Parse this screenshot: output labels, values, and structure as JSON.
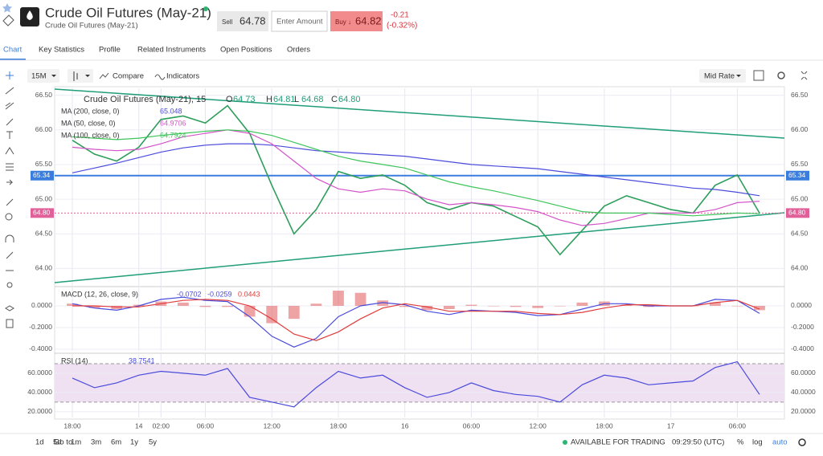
{
  "header": {
    "title": "Crude Oil Futures (May-21)",
    "subtitle": "Crude Oil Futures (May-21)",
    "sell_label": "Sell",
    "sell_price": "64.78",
    "amount_placeholder": "Enter Amount",
    "buy_label": "Buy ↓",
    "buy_price": "64.82",
    "change": "-0.21",
    "change_pct": "(-0.32%)"
  },
  "tabs": {
    "items": [
      "Chart",
      "Key Statistics",
      "Profile",
      "Related Instruments",
      "Open Positions",
      "Orders"
    ],
    "active": 0
  },
  "toolbar": {
    "interval": "15M",
    "compare": "Compare",
    "indicators": "Indicators",
    "price_mode": "Mid Rate"
  },
  "chart_data": [
    {
      "type": "line",
      "title": "Crude Oil Futures (May-21), 15",
      "categories": [
        "18:00",
        null,
        null,
        "14",
        "02:00",
        null,
        "06:00",
        null,
        null,
        "12:00",
        null,
        null,
        "18:00",
        null,
        null,
        "16",
        null,
        null,
        "06:00",
        null,
        null,
        "12:00",
        null,
        null,
        "18:00",
        null,
        null,
        "17",
        null,
        null,
        "06:00",
        null
      ],
      "ohlc": {
        "labels": [
          "O",
          "H",
          "L",
          "C"
        ],
        "values": [
          64.73,
          64.81,
          64.68,
          64.8
        ],
        "value_labels": [
          "64.73",
          "64.81",
          "64.68",
          "64.80"
        ]
      },
      "ylim": [
        63.75,
        66.6
      ],
      "yticks": [
        {
          "value": 64,
          "label": "64.00"
        },
        {
          "value": 64.5,
          "label": "64.50"
        },
        {
          "value": 65,
          "label": "65.00"
        },
        {
          "value": 65.5,
          "label": "65.50"
        },
        {
          "value": 66,
          "label": "66.00"
        },
        {
          "value": 66.5,
          "label": "66.50"
        }
      ],
      "grid": true,
      "price_lines": [
        {
          "value": 65.34,
          "label": "65.34",
          "color": "#3b7ddd"
        },
        {
          "value": 64.8,
          "label": "64.80",
          "color": "#e0609a"
        }
      ],
      "series": [
        {
          "color": "#2e9e5b",
          "values": [
            65.85,
            65.65,
            65.55,
            65.75,
            66.15,
            66.2,
            66.1,
            66.35,
            65.95,
            65.2,
            64.5,
            64.85,
            65.4,
            65.3,
            65.35,
            65.2,
            64.95,
            64.85,
            64.95,
            64.9,
            64.75,
            64.6,
            64.2,
            64.55,
            64.9,
            65.05,
            64.95,
            64.85,
            64.8,
            65.2,
            65.35,
            64.8
          ]
        },
        {
          "name": "MA (200, close, 0)",
          "color": "#4b4bdc",
          "last_value": 65.048,
          "values": [
            65.38,
            65.45,
            65.52,
            65.6,
            65.68,
            65.74,
            65.78,
            65.8,
            65.8,
            65.78,
            65.74,
            65.7,
            65.68,
            65.66,
            65.64,
            65.62,
            65.58,
            65.54,
            65.5,
            65.48,
            65.46,
            65.44,
            65.4,
            65.36,
            65.32,
            65.28,
            65.24,
            65.2,
            65.16,
            65.14,
            65.1,
            65.05
          ]
        },
        {
          "name": "MA (50, close, 0)",
          "color": "#d454c8",
          "last_value": 64.9706,
          "values": [
            65.75,
            65.72,
            65.7,
            65.72,
            65.8,
            65.9,
            65.95,
            66.0,
            65.95,
            65.8,
            65.55,
            65.3,
            65.15,
            65.1,
            65.15,
            65.12,
            65.0,
            64.92,
            64.95,
            64.92,
            64.88,
            64.82,
            64.7,
            64.62,
            64.65,
            64.72,
            64.8,
            64.8,
            64.8,
            64.85,
            64.95,
            64.97
          ]
        },
        {
          "name": "MA (100, close, 0)",
          "color": "#3ec45a",
          "last_value": 64.7924,
          "values": [
            65.9,
            65.88,
            65.86,
            65.88,
            65.92,
            65.95,
            65.98,
            66.0,
            65.98,
            65.92,
            65.82,
            65.72,
            65.62,
            65.55,
            65.5,
            65.45,
            65.35,
            65.25,
            65.18,
            65.12,
            65.05,
            64.98,
            64.9,
            64.82,
            64.8,
            64.8,
            64.8,
            64.78,
            64.76,
            64.78,
            64.8,
            64.79
          ]
        }
      ]
    },
    {
      "type": "macd",
      "title": "MACD (12, 26, close, 9)",
      "readouts": [
        -0.0702,
        -0.0259,
        0.0443
      ],
      "ylim": [
        -0.415,
        0.17
      ],
      "yticks": [
        {
          "value": -0.4,
          "label": "-0.4000"
        },
        {
          "value": -0.2,
          "label": "-0.2000"
        },
        {
          "value": 0,
          "label": "0.0000"
        }
      ],
      "histogram": {
        "color": "#e05a5a",
        "values": [
          0.02,
          -0.02,
          -0.03,
          0.01,
          0.04,
          0.03,
          -0.01,
          -0.01,
          -0.1,
          -0.16,
          -0.12,
          0.02,
          0.14,
          0.12,
          0.05,
          -0.01,
          -0.04,
          -0.03,
          0.01,
          0.0,
          -0.01,
          -0.02,
          0.0,
          0.03,
          0.04,
          0.01,
          -0.01,
          0.0,
          0.0,
          0.03,
          0.0,
          -0.04
        ]
      },
      "series": [
        {
          "color": "#4b4bdc",
          "values": [
            0.02,
            -0.02,
            -0.04,
            0.0,
            0.06,
            0.08,
            0.05,
            0.04,
            -0.1,
            -0.28,
            -0.38,
            -0.3,
            -0.1,
            0.0,
            0.03,
            0.01,
            -0.05,
            -0.08,
            -0.04,
            -0.05,
            -0.06,
            -0.09,
            -0.08,
            -0.03,
            0.02,
            0.02,
            0.0,
            0.0,
            0.0,
            0.06,
            0.05,
            -0.07
          ]
        },
        {
          "color": "#e03c3c",
          "values": [
            0.0,
            0.0,
            -0.01,
            -0.01,
            0.02,
            0.05,
            0.06,
            0.05,
            0.0,
            -0.12,
            -0.26,
            -0.32,
            -0.24,
            -0.12,
            -0.02,
            0.02,
            -0.01,
            -0.05,
            -0.05,
            -0.05,
            -0.05,
            -0.07,
            -0.08,
            -0.06,
            -0.02,
            0.01,
            0.01,
            0.0,
            0.0,
            0.03,
            0.05,
            -0.03
          ]
        }
      ]
    },
    {
      "type": "rsi",
      "title": "RSI (14)",
      "readouts": [
        38.7541
      ],
      "ylim": [
        14,
        80
      ],
      "yticks": [
        {
          "value": 20,
          "label": "20.0000"
        },
        {
          "value": 40,
          "label": "40.0000"
        },
        {
          "value": 60,
          "label": "60.0000"
        }
      ],
      "bands": [
        30,
        70
      ],
      "series": [
        {
          "color": "#4b4bdc",
          "values": [
            55,
            45,
            50,
            58,
            62,
            60,
            58,
            65,
            35,
            30,
            25,
            45,
            62,
            55,
            58,
            45,
            35,
            40,
            50,
            42,
            38,
            36,
            30,
            48,
            58,
            55,
            48,
            50,
            52,
            66,
            72,
            38
          ]
        }
      ]
    }
  ],
  "footer": {
    "ranges": [
      "1d",
      "5d",
      "1m",
      "3m",
      "6m",
      "1y",
      "5y"
    ],
    "goto": "Go to...",
    "status": "AVAILABLE FOR TRADING",
    "time": "09:29:50 (UTC)",
    "percent": "%",
    "log": "log",
    "auto": "auto"
  }
}
